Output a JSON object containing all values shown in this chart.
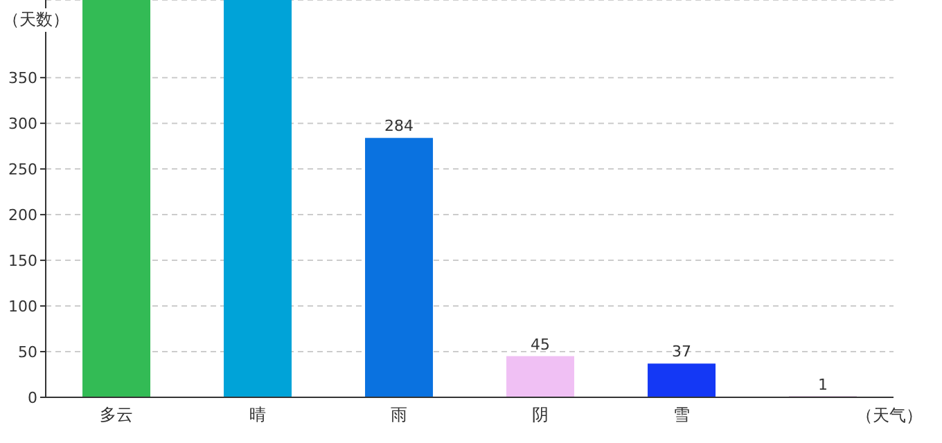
{
  "chart_data": {
    "type": "bar",
    "xlabel": "（天气）",
    "ylabel": "（天数）",
    "categories": [
      "多云",
      "晴",
      "雨",
      "阴",
      "雪",
      null
    ],
    "values": [
      435,
      435,
      284,
      45,
      37,
      1
    ],
    "colors": [
      "#33bb55",
      "#00a3d8",
      "#0a72e0",
      "#f0c0f4",
      "#1438f5",
      "#802080"
    ],
    "value_labels": [
      null,
      null,
      "284",
      "45",
      "37",
      "1"
    ],
    "ylim": [
      0,
      435
    ],
    "yticks": [
      0,
      50,
      100,
      150,
      200,
      250,
      300,
      350
    ],
    "grid": "y"
  }
}
